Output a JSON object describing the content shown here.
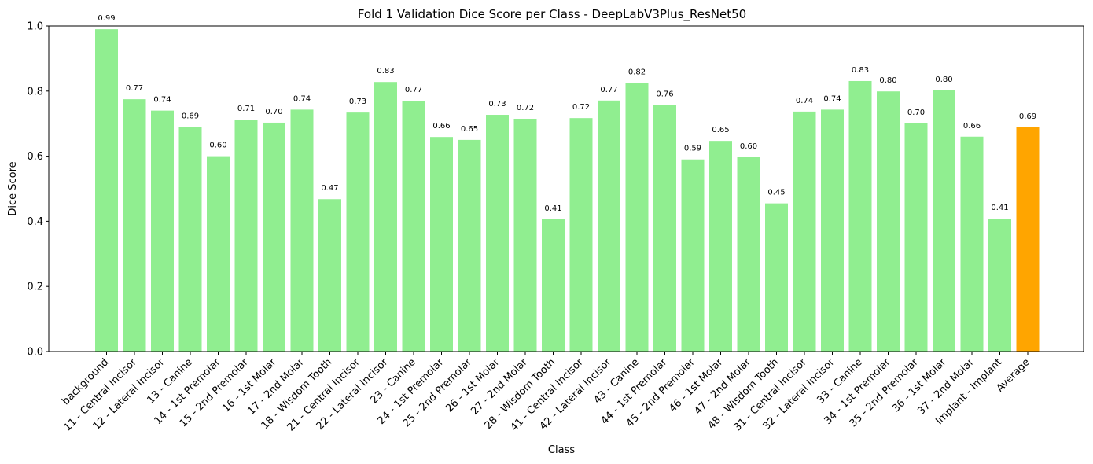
{
  "chart_data": {
    "type": "bar",
    "title": "Fold 1 Validation Dice Score per Class - DeepLabV3Plus_ResNet50",
    "xlabel": "Class",
    "ylabel": "Dice Score",
    "ylim": [
      0,
      1.0
    ],
    "yticks": [
      "0.0",
      "0.2",
      "0.4",
      "0.6",
      "0.8",
      "1.0"
    ],
    "ytick_values": [
      0,
      0.2,
      0.4,
      0.6,
      0.8,
      1.0
    ],
    "grid": false,
    "categories": [
      "background",
      "11 - Central Incisor",
      "12 - Lateral Incisor",
      "13 - Canine",
      "14 - 1st Premolar",
      "15 - 2nd Premolar",
      "16 - 1st Molar",
      "17 - 2nd Molar",
      "18 - Wisdom Tooth",
      "21 - Central Incisor",
      "22 - Lateral Incisor",
      "23 - Canine",
      "24 - 1st Premolar",
      "25 - 2nd Premolar",
      "26 - 1st Molar",
      "27 - 2nd Molar",
      "28 - Wisdom Tooth",
      "41 - Central Incisor",
      "42 - Lateral Incisor",
      "43 - Canine",
      "44 - 1st Premolar",
      "45 - 2nd Premolar",
      "46 - 1st Molar",
      "47 - 2nd Molar",
      "48 - Wisdom Tooth",
      "31 - Central Incisor",
      "32 - Lateral Incisor",
      "33 - Canine",
      "34 - 1st Premolar",
      "35 - 2nd Premolar",
      "36 - 1st Molar",
      "37 - 2nd Molar",
      "Implant - Implant",
      "Average"
    ],
    "values": [
      0.99,
      0.775,
      0.74,
      0.69,
      0.6,
      0.712,
      0.703,
      0.743,
      0.468,
      0.734,
      0.828,
      0.77,
      0.659,
      0.65,
      0.727,
      0.715,
      0.406,
      0.717,
      0.771,
      0.825,
      0.757,
      0.59,
      0.647,
      0.597,
      0.455,
      0.737,
      0.743,
      0.831,
      0.799,
      0.701,
      0.802,
      0.66,
      0.408,
      0.689
    ],
    "value_labels": [
      "0.99",
      "0.77",
      "0.74",
      "0.69",
      "0.60",
      "0.71",
      "0.70",
      "0.74",
      "0.47",
      "0.73",
      "0.83",
      "0.77",
      "0.66",
      "0.65",
      "0.73",
      "0.72",
      "0.41",
      "0.72",
      "0.77",
      "0.82",
      "0.76",
      "0.59",
      "0.65",
      "0.60",
      "0.45",
      "0.74",
      "0.74",
      "0.83",
      "0.80",
      "0.70",
      "0.80",
      "0.66",
      "0.41",
      "0.69"
    ],
    "colors": {
      "bar": "#90ee90",
      "highlight": "#ffa500",
      "axis": "#000000"
    },
    "highlight_index": 33
  }
}
